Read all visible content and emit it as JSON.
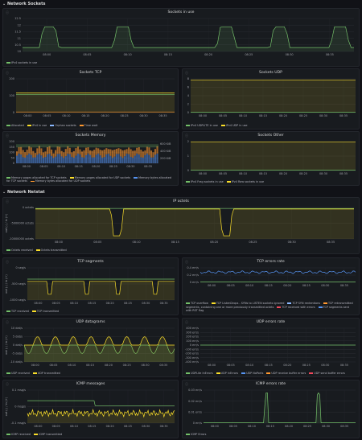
{
  "rows": [
    {
      "label": "Network Sockets"
    },
    {
      "label": "Network Netstat"
    }
  ],
  "colors": {
    "green": "#73bf69",
    "yellow": "#fade2a",
    "orange": "#ff9830",
    "blue": "#5794f2",
    "red": "#f2495c",
    "purple": "#b877d9",
    "lightblue": "#8ab8ff",
    "olive": "#c8c83a"
  },
  "panels": {
    "sockets_in_use": {
      "title": "Sockets in use",
      "yticks": [
        "12.5",
        "12",
        "11.5",
        "11",
        "10.5",
        "10"
      ],
      "xticks": [
        "08:00",
        "08:05",
        "08:10",
        "08:15",
        "08:20",
        "08:25",
        "08:30",
        "08:35"
      ],
      "legend": [
        "IPv4 sockets in use"
      ]
    },
    "sockets_tcp": {
      "title": "Sockets TCP",
      "yticks": [
        "200",
        "100",
        "0"
      ],
      "xticks": [
        "08:00",
        "08:05",
        "08:10",
        "08:15",
        "08:20",
        "08:25",
        "08:30",
        "08:35"
      ],
      "legend": [
        "Allocated",
        "IPv4 in use",
        "Orphan sockets",
        "Time wait"
      ]
    },
    "sockets_udp": {
      "title": "Sockets UDP",
      "yticks": [
        "8",
        "6",
        "4",
        "2",
        "0"
      ],
      "xticks": [
        "08:00",
        "08:05",
        "08:10",
        "08:15",
        "08:20",
        "08:25",
        "08:30",
        "08:35"
      ],
      "legend": [
        "IPv4 UDPLITE in use",
        "IPv4 UDP in use"
      ]
    },
    "sockets_memory": {
      "title": "Sockets Memory",
      "yticks": [
        "200",
        "150",
        "100",
        "50",
        "0"
      ],
      "yticks_right": [
        "600 KiB",
        "400 KiB",
        "200 KiB"
      ],
      "xticks": [
        "08:00",
        "08:05",
        "08:10",
        "08:15",
        "08:20",
        "08:25",
        "08:30",
        "08:35"
      ],
      "legend": [
        "Memory pages allocated for TCP sockets",
        "Memory pages allocated for UDP sockets",
        "Memory bytes allocated for TCP sockets",
        "Memory bytes allocated for UDP sockets"
      ]
    },
    "sockets_other": {
      "title": "Sockets Other",
      "yticks": [
        "2",
        "1",
        "0"
      ],
      "xticks": [
        "08:00",
        "08:05",
        "08:10",
        "08:15",
        "08:20",
        "08:25",
        "08:30",
        "08:35"
      ],
      "legend": [
        "IPv4 Frag sockets in use",
        "IPv4 Raw sockets in use"
      ]
    },
    "ip_octets": {
      "title": "IP octets",
      "yticks": [
        "0 octets",
        "-5000000 octets",
        "-10000000 octets"
      ],
      "ylabel": "out (-) / in (+)",
      "xticks": [
        "08:00",
        "08:05",
        "08:10",
        "08:15",
        "08:20",
        "08:25",
        "08:30",
        "08:35"
      ],
      "legend": [
        "Octets received",
        "Octets transmitted"
      ]
    },
    "tcp_segments": {
      "title": "TCP segments",
      "yticks": [
        "0 seg/s",
        "-500 seg/s",
        "-1000 seg/s"
      ],
      "ylabel": "out (-) / in (+)",
      "xticks": [
        "08:00",
        "08:05",
        "08:10",
        "08:15",
        "08:20",
        "08:25",
        "08:30",
        "08:35"
      ],
      "legend": [
        "TCP received",
        "TCP transmitted"
      ]
    },
    "tcp_errors": {
      "title": "TCP errors rate",
      "yticks": [
        "0.4 err/s",
        "0.2 err/s",
        "0 err/s"
      ],
      "xticks": [
        "08:00",
        "08:05",
        "08:10",
        "08:15",
        "08:20",
        "08:25",
        "08:30",
        "08:35"
      ],
      "legend": [
        "TCP overflow",
        "TCP ListenDrops - SYNs to LISTEN sockets ignored",
        "TCP SYN rententions",
        "TCP retransmitted segments, containing one or more previously transmitted octets",
        "TCP received with errors",
        "TCP segments sent with RST flag"
      ]
    },
    "udp_datagrams": {
      "title": "UDP datagrams",
      "yticks": [
        "10 dat/s",
        "5 dat/s",
        "0 dat/s",
        "-5 dat/s",
        "-10 dat/s"
      ],
      "ylabel": "out (-) / in (+)",
      "xticks": [
        "08:00",
        "08:05",
        "08:10",
        "08:15",
        "08:20",
        "08:25",
        "08:30",
        "08:35"
      ],
      "legend": [
        "UDP received",
        "UDP transmitted"
      ]
    },
    "udp_errors": {
      "title": "UDP errors rate",
      "yticks": [
        "400 err/s",
        "300 err/s",
        "200 err/s",
        "100 err/s",
        "0 err/s",
        "-100 err/s",
        "-200 err/s",
        "-300 err/s",
        "-400 err/s"
      ],
      "xticks": [
        "08:00",
        "08:05",
        "08:10",
        "08:15",
        "08:20",
        "08:25",
        "08:30",
        "08:35"
      ],
      "legend": [
        "UDPLite InErrors",
        "UDP InErrors",
        "UDP NoPorts",
        "UDP receive buffer errors",
        "UDP send buffer errors"
      ]
    },
    "icmp_messages": {
      "title": "ICMP messages",
      "yticks": [
        "0.1 msg/s",
        "0 msg/s",
        "-0.1 msg/s"
      ],
      "ylabel": "out (-) / in (+)",
      "xticks": [
        "08:00",
        "08:05",
        "08:10",
        "08:15",
        "08:20",
        "08:25",
        "08:30",
        "08:35"
      ],
      "legend": [
        "ICMP received",
        "ICMP transmitted"
      ]
    },
    "icmp_errors": {
      "title": "ICMP errors rate",
      "yticks": [
        "0.03 err/s",
        "0.02 err/s",
        "0.01 err/s",
        "0 err/s"
      ],
      "xticks": [
        "08:00",
        "08:05",
        "08:10",
        "08:15",
        "08:20",
        "08:25",
        "08:30",
        "08:35"
      ],
      "legend": [
        "ICMP Errors"
      ]
    }
  }
}
